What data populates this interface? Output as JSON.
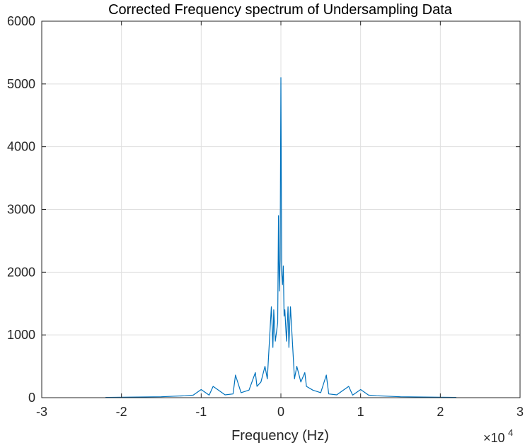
{
  "chart_data": {
    "type": "line",
    "title": "Corrected Frequency spectrum of Undersampling Data",
    "xlabel": "Frequency (Hz)",
    "ylabel": "",
    "xlim": [
      -30000,
      30000
    ],
    "ylim": [
      0,
      6000
    ],
    "x_ticks": [
      -30000,
      -20000,
      -10000,
      0,
      10000,
      20000,
      30000
    ],
    "x_tick_labels": [
      "-3",
      "-2",
      "-1",
      "0",
      "1",
      "2",
      "3"
    ],
    "x_exponent_label": {
      "base": "×10",
      "power": "4"
    },
    "y_ticks": [
      0,
      1000,
      2000,
      3000,
      4000,
      5000,
      6000
    ],
    "y_tick_labels": [
      "0",
      "1000",
      "2000",
      "3000",
      "4000",
      "5000",
      "6000"
    ],
    "grid": true,
    "line_color": "#0072BD",
    "series": [
      {
        "x": [
          -22000,
          -20000,
          -15000,
          -12000,
          -11000,
          -10000,
          -9000,
          -8500,
          -7000,
          -6000,
          -5700,
          -5000,
          -4000,
          -3000,
          -3200,
          -2500,
          -2000,
          -1700,
          -1200,
          -1000,
          -900,
          -700,
          -500,
          -400,
          -300,
          -200,
          -100,
          0,
          100,
          200,
          300,
          400,
          500,
          700,
          900,
          1000,
          1200,
          1700,
          2000,
          2500,
          3000,
          3200,
          4000,
          5000,
          5700,
          6000,
          7000,
          8500,
          9000,
          10000,
          11000,
          12000,
          15000,
          20000,
          22000
        ],
        "y": [
          5,
          8,
          15,
          30,
          40,
          130,
          40,
          180,
          45,
          60,
          360,
          80,
          120,
          180,
          400,
          250,
          500,
          300,
          1450,
          800,
          1400,
          900,
          1100,
          1200,
          2900,
          1700,
          2200,
          5100,
          2000,
          1800,
          2100,
          1300,
          1400,
          900,
          1450,
          800,
          1450,
          300,
          500,
          250,
          400,
          180,
          120,
          80,
          360,
          60,
          45,
          180,
          40,
          130,
          40,
          30,
          15,
          8,
          5
        ]
      }
    ]
  }
}
